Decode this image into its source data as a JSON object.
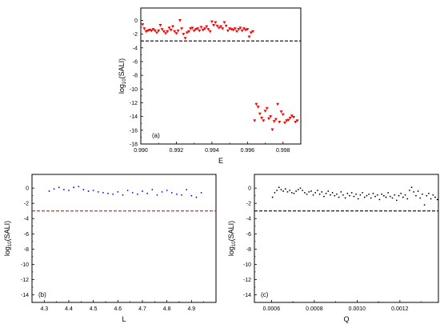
{
  "chart_data": [
    {
      "type": "scatter",
      "panel_label": "(a)",
      "xlabel": "E",
      "ylabel_main": "log",
      "ylabel_sub": "10",
      "ylabel_paren": "(SALI)",
      "xlim": [
        0.99,
        0.999
      ],
      "ylim": [
        -18,
        1.8
      ],
      "xticks": [
        0.99,
        0.992,
        0.994,
        0.996,
        0.998
      ],
      "xtick_labels": [
        "0.990",
        "0.992",
        "0.994",
        "0.996",
        "0.998"
      ],
      "yticks": [
        0,
        -2,
        -4,
        -6,
        -8,
        -10,
        -12,
        -14,
        -16,
        -18
      ],
      "ytick_labels": [
        "0",
        "-2",
        "-4",
        "-6",
        "-8",
        "-10",
        "-12",
        "-14",
        "-16",
        "-18"
      ],
      "marker": "triangle",
      "marker_color": "#ff0000",
      "threshold": -3,
      "threshold_color": "#000000",
      "series": [
        {
          "x": [
            0.9901,
            0.9902,
            0.9903,
            0.9904,
            0.9905,
            0.9906,
            0.9907,
            0.9908,
            0.9909,
            0.991,
            0.9911,
            0.9912,
            0.9913,
            0.9914,
            0.9915,
            0.9916,
            0.9917,
            0.9918,
            0.9919,
            0.992,
            0.9921,
            0.9922,
            0.9923,
            0.9924,
            0.9925,
            0.9926,
            0.9927,
            0.9928,
            0.9929,
            0.993,
            0.9931,
            0.9932,
            0.9933,
            0.9934,
            0.9935,
            0.9936,
            0.9937,
            0.9938,
            0.9939,
            0.994,
            0.9941,
            0.9942,
            0.9943,
            0.9944,
            0.9945,
            0.9946,
            0.9947,
            0.9948,
            0.9949,
            0.995,
            0.9951,
            0.9952,
            0.9953,
            0.9954,
            0.9955,
            0.9956,
            0.9957,
            0.9958,
            0.9959,
            0.996,
            0.9961,
            0.9962,
            0.9963,
            0.9964,
            0.9965,
            0.9966,
            0.9967,
            0.9968,
            0.9969,
            0.997,
            0.9971,
            0.9972,
            0.9973,
            0.9974,
            0.9975,
            0.9976,
            0.9977,
            0.9978,
            0.9979,
            0.998,
            0.9981,
            0.9982,
            0.9983,
            0.9984,
            0.9985,
            0.9986,
            0.9987,
            0.9988
          ],
          "y": [
            -0.6,
            -1.2,
            -1.6,
            -1.5,
            -1.4,
            -1.5,
            -1.3,
            -1.5,
            -1.8,
            -1.5,
            -0.7,
            -1.3,
            -1.6,
            -1.9,
            -1.6,
            -1.1,
            -1.4,
            -0.9,
            -1.6,
            -1.9,
            -1.5,
            0.0,
            -1.2,
            -2.0,
            -2.6,
            -1.8,
            -1.6,
            -1.2,
            -1.1,
            -1.5,
            -1.3,
            -1.2,
            -1.5,
            -1.0,
            -1.4,
            -1.2,
            -0.9,
            -1.3,
            -1.6,
            -0.2,
            -0.7,
            -0.3,
            -0.8,
            -1.1,
            -0.9,
            -1.2,
            -0.3,
            -0.8,
            -1.5,
            -1.2,
            -1.3,
            -1.4,
            -1.2,
            -1.6,
            -1.3,
            -1.1,
            -1.5,
            -1.2,
            -1.4,
            -1.3,
            -2.4,
            -1.8,
            -1.6,
            -14.6,
            -12.2,
            -12.6,
            -13.6,
            -14.2,
            -14.6,
            -13.2,
            -12.8,
            -14.3,
            -14.0,
            -15.9,
            -14.7,
            -14.4,
            -12.2,
            -14.8,
            -13.3,
            -13.7,
            -14.9,
            -14.6,
            -14.5,
            -14.2,
            -13.9,
            -14.1,
            -14.8,
            -14.6
          ]
        }
      ]
    },
    {
      "type": "scatter",
      "panel_label": "(b)",
      "xlabel": "L",
      "ylabel_main": "log",
      "ylabel_sub": "10",
      "ylabel_paren": "(SALI)",
      "xlim": [
        4.25,
        5.0
      ],
      "ylim": [
        -15,
        1.8
      ],
      "xticks": [
        4.3,
        4.4,
        4.5,
        4.6,
        4.7,
        4.8,
        4.9
      ],
      "xtick_labels": [
        "4.3",
        "4.4",
        "4.5",
        "4.6",
        "4.7",
        "4.8",
        "4.9"
      ],
      "yticks": [
        0,
        -2,
        -4,
        -6,
        -8,
        -10,
        -12,
        -14
      ],
      "ytick_labels": [
        "0",
        "-2",
        "-4",
        "-6",
        "-8",
        "-10",
        "-12",
        "-14"
      ],
      "marker": "dot",
      "marker_color": "#0000ff",
      "threshold": -3,
      "threshold_color": "#ff0000",
      "series": [
        {
          "x": [
            4.32,
            4.34,
            4.36,
            4.38,
            4.4,
            4.42,
            4.44,
            4.46,
            4.48,
            4.5,
            4.52,
            4.54,
            4.56,
            4.58,
            4.6,
            4.62,
            4.64,
            4.66,
            4.68,
            4.7,
            4.72,
            4.74,
            4.76,
            4.78,
            4.8,
            4.82,
            4.84,
            4.86,
            4.88,
            4.9,
            4.92,
            4.94
          ],
          "y": [
            -0.4,
            -0.1,
            0.1,
            -0.2,
            -0.3,
            0.1,
            0.2,
            -0.2,
            -0.4,
            -0.3,
            -0.5,
            -0.6,
            -0.7,
            -0.8,
            -0.5,
            -0.9,
            -0.3,
            -0.6,
            -0.8,
            -0.4,
            -0.7,
            -0.2,
            -0.9,
            -0.5,
            -0.3,
            -0.6,
            -0.8,
            -0.9,
            -0.2,
            -1.0,
            -1.2,
            -0.6
          ]
        }
      ]
    },
    {
      "type": "scatter",
      "panel_label": "(c)",
      "xlabel": "Q",
      "ylabel_main": "log",
      "ylabel_sub": "10",
      "ylabel_paren": "(SALI)",
      "xlim": [
        0.00052,
        0.00138
      ],
      "ylim": [
        -15,
        1.8
      ],
      "xticks": [
        0.0006,
        0.0008,
        0.001,
        0.0012
      ],
      "xtick_labels": [
        "0.0006",
        "0.0008",
        "0.0010",
        "0.0012"
      ],
      "yticks": [
        0,
        -2,
        -4,
        -6,
        -8,
        -10,
        -12,
        -14
      ],
      "ytick_labels": [
        "0",
        "-2",
        "-4",
        "-6",
        "-8",
        "-10",
        "-12",
        "-14"
      ],
      "marker": "dot",
      "marker_color": "#000000",
      "threshold": -3,
      "threshold_color": "#000000",
      "series": [
        {
          "x": [
            0.000605,
            0.000615,
            0.000625,
            0.000635,
            0.000645,
            0.000655,
            0.000665,
            0.000675,
            0.000685,
            0.000695,
            0.000705,
            0.000715,
            0.000725,
            0.000735,
            0.000745,
            0.000755,
            0.000765,
            0.000775,
            0.000785,
            0.000795,
            0.000805,
            0.000815,
            0.000825,
            0.000835,
            0.000845,
            0.000855,
            0.000865,
            0.000875,
            0.000885,
            0.000895,
            0.000905,
            0.000915,
            0.000925,
            0.000935,
            0.000945,
            0.000955,
            0.000965,
            0.000975,
            0.000985,
            0.000995,
            0.001005,
            0.001015,
            0.001025,
            0.001035,
            0.001045,
            0.001055,
            0.001065,
            0.001075,
            0.001085,
            0.001095,
            0.001105,
            0.001115,
            0.001125,
            0.001135,
            0.001145,
            0.001155,
            0.001165,
            0.001175,
            0.001185,
            0.001195,
            0.001205,
            0.001215,
            0.001225,
            0.001235,
            0.001245,
            0.001255,
            0.001265,
            0.001275,
            0.001285,
            0.001295,
            0.001305,
            0.001315,
            0.001325,
            0.001335,
            0.001345,
            0.001355,
            0.001365,
            0.001375
          ],
          "y": [
            -1.2,
            -0.6,
            -0.3,
            0.1,
            -0.2,
            -0.4,
            -0.1,
            -0.5,
            -0.3,
            -0.6,
            -0.7,
            -0.4,
            -0.2,
            0.0,
            -0.3,
            -0.6,
            -0.8,
            -0.5,
            -0.4,
            -0.9,
            -0.6,
            -0.3,
            -0.8,
            -0.5,
            -1.1,
            -0.7,
            -0.4,
            -0.9,
            -0.6,
            -1.0,
            -0.8,
            -1.2,
            -0.5,
            -0.9,
            -1.3,
            -0.7,
            -1.0,
            -0.6,
            -1.1,
            -0.8,
            -1.4,
            -0.9,
            -0.6,
            -1.2,
            -1.0,
            -0.8,
            -1.3,
            -0.7,
            -1.1,
            -0.9,
            -1.5,
            -0.8,
            -1.0,
            -1.2,
            -0.6,
            -1.1,
            -1.3,
            -0.9,
            -1.6,
            -1.0,
            -0.7,
            -1.2,
            -0.9,
            -1.4,
            -0.3,
            0.1,
            -0.5,
            -1.0,
            -0.4,
            -1.3,
            -0.8,
            -2.2,
            -1.0,
            -0.7,
            -1.4,
            -0.9,
            -1.2,
            -1.5
          ]
        }
      ]
    }
  ]
}
